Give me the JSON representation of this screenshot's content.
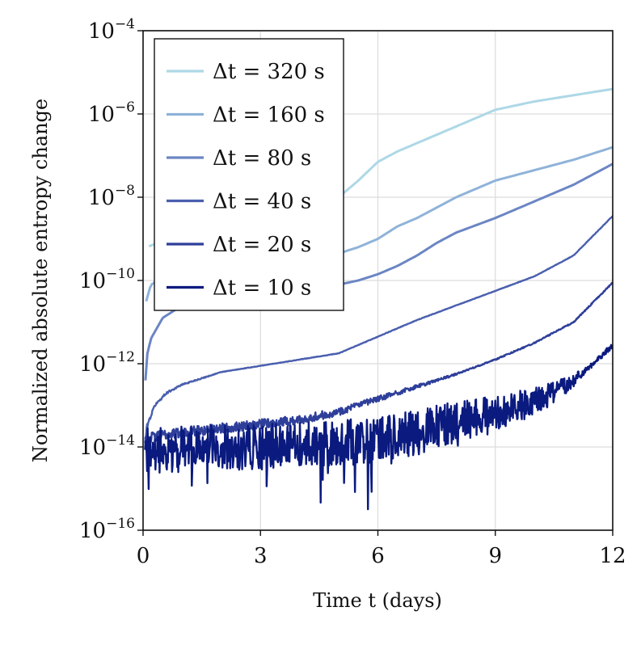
{
  "chart_data": {
    "type": "line",
    "title": "",
    "xlabel": "Time t (days)",
    "ylabel": "Normalized absolute entropy change",
    "xlim": [
      0,
      12
    ],
    "ylim_log10": [
      -16,
      -4
    ],
    "yscale": "log",
    "grid": true,
    "legend_position": "top-left",
    "x_ticks": [
      {
        "value": 0,
        "label": "0"
      },
      {
        "value": 3,
        "label": "3"
      },
      {
        "value": 6,
        "label": "6"
      },
      {
        "value": 9,
        "label": "9"
      },
      {
        "value": 12,
        "label": "12"
      }
    ],
    "y_ticks": [
      {
        "exponent": -16,
        "base": "10",
        "exp_label": "−16"
      },
      {
        "exponent": -14,
        "base": "10",
        "exp_label": "−14"
      },
      {
        "exponent": -12,
        "base": "10",
        "exp_label": "−12"
      },
      {
        "exponent": -10,
        "base": "10",
        "exp_label": "−10"
      },
      {
        "exponent": -8,
        "base": "10",
        "exp_label": "−8"
      },
      {
        "exponent": -6,
        "base": "10",
        "exp_label": "−6"
      },
      {
        "exponent": -4,
        "base": "10",
        "exp_label": "−4"
      }
    ],
    "series": [
      {
        "name": "Δt = 320 s",
        "color": "#add8e6",
        "noisy": false,
        "x": [
          0.15,
          0.5,
          1,
          2,
          3,
          4,
          5,
          5.5,
          6,
          6.5,
          7,
          7.5,
          8,
          8.5,
          9,
          9.5,
          10,
          11,
          12
        ],
        "log10y": [
          -9.18,
          -9.05,
          -8.95,
          -8.8,
          -8.6,
          -8.4,
          -8.0,
          -7.6,
          -7.15,
          -6.9,
          -6.7,
          -6.5,
          -6.3,
          -6.1,
          -5.9,
          -5.8,
          -5.7,
          -5.55,
          -5.4
        ]
      },
      {
        "name": "Δt = 160 s",
        "color": "#8fb3d9",
        "noisy": false,
        "x": [
          0.08,
          0.2,
          0.5,
          1,
          2,
          3,
          4,
          5,
          5.5,
          6,
          6.5,
          7,
          7.5,
          8,
          8.5,
          9,
          10,
          11,
          12
        ],
        "log10y": [
          -10.5,
          -10.1,
          -9.95,
          -9.85,
          -9.75,
          -9.65,
          -9.5,
          -9.35,
          -9.2,
          -9.0,
          -8.7,
          -8.5,
          -8.25,
          -8.0,
          -7.8,
          -7.6,
          -7.35,
          -7.1,
          -6.8
        ]
      },
      {
        "name": "Δt = 80 s",
        "color": "#6b86c4",
        "noisy": false,
        "x": [
          0.06,
          0.1,
          0.2,
          0.5,
          1,
          2,
          3,
          4,
          5,
          5.5,
          6,
          6.5,
          7,
          7.5,
          8,
          9,
          10,
          11,
          12
        ],
        "log10y": [
          -12.4,
          -11.8,
          -11.4,
          -10.9,
          -10.6,
          -10.45,
          -10.3,
          -10.2,
          -10.1,
          -10.0,
          -9.85,
          -9.65,
          -9.4,
          -9.1,
          -8.85,
          -8.5,
          -8.1,
          -7.7,
          -7.2
        ]
      },
      {
        "name": "Δt = 40 s",
        "color": "#4a5fae",
        "noisy": true,
        "noise": 0.05,
        "x": [
          0.05,
          0.1,
          0.3,
          0.6,
          1,
          1.5,
          2,
          3,
          4,
          5,
          5.5,
          6,
          6.5,
          7,
          8,
          9,
          10,
          11,
          12
        ],
        "log10y": [
          -13.9,
          -13.5,
          -13.0,
          -12.7,
          -12.5,
          -12.35,
          -12.2,
          -12.05,
          -11.9,
          -11.75,
          -11.55,
          -11.35,
          -11.15,
          -10.95,
          -10.6,
          -10.25,
          -9.9,
          -9.4,
          -8.45
        ]
      },
      {
        "name": "Δt = 20 s",
        "color": "#2e3f9a",
        "noisy": true,
        "noise": 0.12,
        "x": [
          0.05,
          0.3,
          0.6,
          1,
          2,
          3,
          4,
          5,
          5.5,
          6,
          6.5,
          7,
          8,
          9,
          10,
          11,
          12
        ],
        "log10y": [
          -13.8,
          -13.75,
          -13.7,
          -13.65,
          -13.55,
          -13.45,
          -13.35,
          -13.15,
          -13.0,
          -12.85,
          -12.7,
          -12.55,
          -12.25,
          -11.9,
          -11.5,
          -11.0,
          -10.05
        ]
      },
      {
        "name": "Δt = 10 s",
        "color": "#0a1a7f",
        "noisy": true,
        "noise": 0.55,
        "x": [
          0.05,
          1,
          2,
          3,
          4,
          5,
          6,
          6.5,
          7,
          8,
          9,
          10,
          10.5,
          11,
          11.5,
          12
        ],
        "log10y": [
          -14.1,
          -14.05,
          -14.0,
          -14.0,
          -13.95,
          -13.9,
          -13.85,
          -13.75,
          -13.65,
          -13.45,
          -13.2,
          -12.9,
          -12.7,
          -12.4,
          -12.0,
          -11.55
        ]
      }
    ]
  }
}
